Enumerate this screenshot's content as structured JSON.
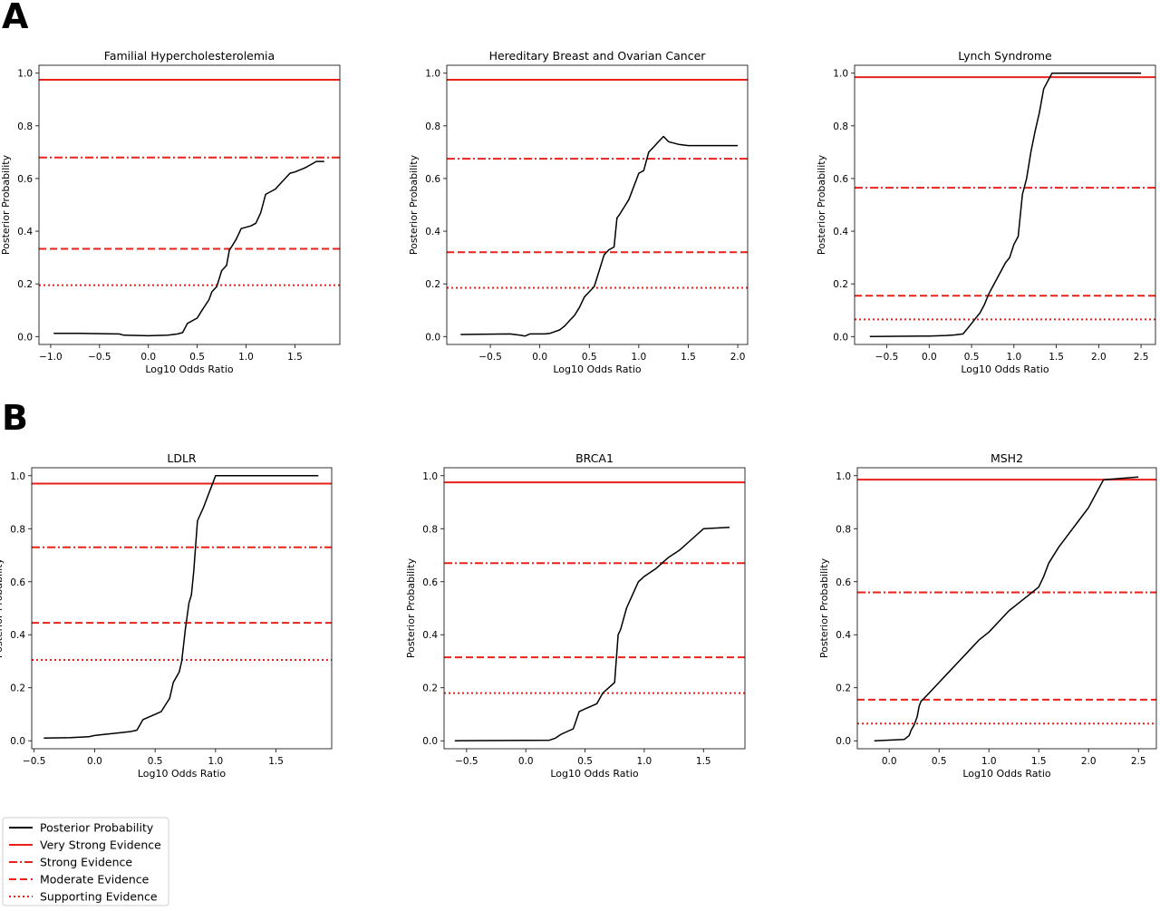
{
  "panel_labels": [
    "A",
    "B"
  ],
  "legend": {
    "entries": [
      {
        "key": "posterior",
        "label": "Posterior Probability",
        "color": "#000000",
        "style": "solid"
      },
      {
        "key": "very_strong",
        "label": "Very Strong Evidence",
        "color": "#e8221a",
        "style": "solid"
      },
      {
        "key": "strong",
        "label": "Strong Evidence",
        "color": "#e8221a",
        "style": "dashdot"
      },
      {
        "key": "moderate",
        "label": "Moderate Evidence",
        "color": "#e8221a",
        "style": "dashed"
      },
      {
        "key": "supporting",
        "label": "Supporting Evidence",
        "color": "#e8221a",
        "style": "dotted"
      }
    ]
  },
  "chart_data": [
    {
      "type": "line",
      "title": "Familial Hypercholesterolemia",
      "xlabel": "Log10 Odds Ratio",
      "ylabel": "Posterior Probability",
      "xlim": [
        -1.12,
        1.96
      ],
      "ylim": [
        -0.03,
        1.03
      ],
      "xticks": [
        -1.0,
        -0.5,
        0.0,
        0.5,
        1.0,
        1.5
      ],
      "xtick_labels": [
        "−1.0",
        "−0.5",
        "0.0",
        "0.5",
        "1.0",
        "1.5"
      ],
      "yticks": [
        0.0,
        0.2,
        0.4,
        0.6,
        0.8,
        1.0
      ],
      "ytick_labels": [
        "0.0",
        "0.2",
        "0.4",
        "0.6",
        "0.8",
        "1.0"
      ],
      "thresholds": {
        "very_strong": 0.975,
        "strong": 0.68,
        "moderate": 0.333,
        "supporting": 0.195
      },
      "series": [
        {
          "x": [
            -0.97,
            -0.7,
            -0.3,
            -0.25,
            0.0,
            0.2,
            0.3,
            0.35,
            0.4,
            0.5,
            0.55,
            0.62,
            0.65,
            0.7,
            0.75,
            0.8,
            0.83,
            0.85,
            0.9,
            0.95,
            1.0,
            1.05,
            1.1,
            1.15,
            1.2,
            1.25,
            1.3,
            1.35,
            1.45,
            1.5,
            1.6,
            1.65,
            1.72,
            1.8
          ],
          "y": [
            0.012,
            0.012,
            0.01,
            0.005,
            0.003,
            0.005,
            0.01,
            0.015,
            0.05,
            0.07,
            0.1,
            0.14,
            0.17,
            0.19,
            0.25,
            0.27,
            0.33,
            0.34,
            0.37,
            0.41,
            0.415,
            0.42,
            0.43,
            0.47,
            0.54,
            0.55,
            0.56,
            0.58,
            0.62,
            0.625,
            0.64,
            0.65,
            0.665,
            0.665
          ]
        }
      ]
    },
    {
      "type": "line",
      "title": "Hereditary Breast and Ovarian Cancer",
      "xlabel": "Log10 Odds Ratio",
      "ylabel": "Posterior Probability",
      "xlim": [
        -0.94,
        2.1
      ],
      "ylim": [
        -0.03,
        1.03
      ],
      "xticks": [
        -0.5,
        0.0,
        0.5,
        1.0,
        1.5,
        2.0
      ],
      "xtick_labels": [
        "−0.5",
        "0.0",
        "0.5",
        "1.0",
        "1.5",
        "2.0"
      ],
      "yticks": [
        0.0,
        0.2,
        0.4,
        0.6,
        0.8,
        1.0
      ],
      "ytick_labels": [
        "0.0",
        "0.2",
        "0.4",
        "0.6",
        "0.8",
        "1.0"
      ],
      "thresholds": {
        "very_strong": 0.975,
        "strong": 0.675,
        "moderate": 0.32,
        "supporting": 0.185
      },
      "series": [
        {
          "x": [
            -0.8,
            -0.3,
            -0.2,
            -0.15,
            -0.1,
            0.0,
            0.05,
            0.1,
            0.2,
            0.25,
            0.3,
            0.35,
            0.4,
            0.45,
            0.5,
            0.55,
            0.6,
            0.65,
            0.7,
            0.75,
            0.78,
            0.8,
            0.85,
            0.9,
            0.95,
            1.0,
            1.05,
            1.1,
            1.15,
            1.2,
            1.25,
            1.3,
            1.4,
            1.5,
            2.0
          ],
          "y": [
            0.008,
            0.01,
            0.005,
            0.002,
            0.01,
            0.01,
            0.01,
            0.012,
            0.025,
            0.04,
            0.06,
            0.08,
            0.11,
            0.15,
            0.17,
            0.19,
            0.25,
            0.31,
            0.33,
            0.34,
            0.45,
            0.46,
            0.49,
            0.52,
            0.57,
            0.62,
            0.63,
            0.7,
            0.72,
            0.74,
            0.76,
            0.74,
            0.73,
            0.725,
            0.725
          ]
        }
      ]
    },
    {
      "type": "line",
      "title": "Lynch Syndrome",
      "xlabel": "Log10 Odds Ratio",
      "ylabel": "Posterior Probability",
      "xlim": [
        -0.88,
        2.67
      ],
      "ylim": [
        -0.03,
        1.03
      ],
      "xticks": [
        -0.5,
        0.0,
        0.5,
        1.0,
        1.5,
        2.0,
        2.5
      ],
      "xtick_labels": [
        "−0.5",
        "0.0",
        "0.5",
        "1.0",
        "1.5",
        "2.0",
        "2.5"
      ],
      "yticks": [
        0.0,
        0.2,
        0.4,
        0.6,
        0.8,
        1.0
      ],
      "ytick_labels": [
        "0.0",
        "0.2",
        "0.4",
        "0.6",
        "0.8",
        "1.0"
      ],
      "thresholds": {
        "very_strong": 0.985,
        "strong": 0.565,
        "moderate": 0.155,
        "supporting": 0.065
      },
      "series": [
        {
          "x": [
            -0.7,
            0.0,
            0.2,
            0.3,
            0.4,
            0.45,
            0.5,
            0.55,
            0.6,
            0.65,
            0.7,
            0.75,
            0.8,
            0.85,
            0.9,
            0.95,
            1.0,
            1.05,
            1.1,
            1.15,
            1.2,
            1.25,
            1.3,
            1.35,
            1.4,
            1.45,
            1.5,
            2.5
          ],
          "y": [
            0.0,
            0.002,
            0.004,
            0.006,
            0.01,
            0.03,
            0.05,
            0.07,
            0.09,
            0.12,
            0.16,
            0.19,
            0.22,
            0.25,
            0.28,
            0.3,
            0.35,
            0.38,
            0.54,
            0.6,
            0.7,
            0.78,
            0.85,
            0.94,
            0.97,
            1.0,
            1.0,
            1.0
          ]
        }
      ]
    },
    {
      "type": "line",
      "title": "LDLR",
      "xlabel": "Log10 Odds Ratio",
      "ylabel": "Posterior Probability",
      "xlim": [
        -0.52,
        1.96
      ],
      "ylim": [
        -0.03,
        1.03
      ],
      "xticks": [
        -0.5,
        0.0,
        0.5,
        1.0,
        1.5
      ],
      "xtick_labels": [
        "−0.5",
        "0.0",
        "0.5",
        "1.0",
        "1.5"
      ],
      "yticks": [
        0.0,
        0.2,
        0.4,
        0.6,
        0.8,
        1.0
      ],
      "ytick_labels": [
        "0.0",
        "0.2",
        "0.4",
        "0.6",
        "0.8",
        "1.0"
      ],
      "thresholds": {
        "very_strong": 0.97,
        "strong": 0.73,
        "moderate": 0.445,
        "supporting": 0.305
      },
      "series": [
        {
          "x": [
            -0.42,
            -0.2,
            -0.05,
            0.0,
            0.1,
            0.2,
            0.3,
            0.35,
            0.4,
            0.5,
            0.55,
            0.62,
            0.65,
            0.7,
            0.72,
            0.75,
            0.78,
            0.8,
            0.82,
            0.85,
            0.9,
            0.95,
            1.0,
            1.05,
            1.85
          ],
          "y": [
            0.01,
            0.012,
            0.015,
            0.02,
            0.025,
            0.03,
            0.035,
            0.04,
            0.08,
            0.1,
            0.11,
            0.16,
            0.22,
            0.26,
            0.3,
            0.42,
            0.52,
            0.55,
            0.64,
            0.83,
            0.88,
            0.94,
            1.0,
            1.0,
            1.0
          ]
        }
      ]
    },
    {
      "type": "line",
      "title": "BRCA1",
      "xlabel": "Log10 Odds Ratio",
      "ylabel": "Posterior Probability",
      "xlim": [
        -0.69,
        1.85
      ],
      "ylim": [
        -0.03,
        1.03
      ],
      "xticks": [
        -0.5,
        0.0,
        0.5,
        1.0,
        1.5
      ],
      "xtick_labels": [
        "−0.5",
        "0.0",
        "0.5",
        "1.0",
        "1.5"
      ],
      "yticks": [
        0.0,
        0.2,
        0.4,
        0.6,
        0.8,
        1.0
      ],
      "ytick_labels": [
        "0.0",
        "0.2",
        "0.4",
        "0.6",
        "0.8",
        "1.0"
      ],
      "thresholds": {
        "very_strong": 0.975,
        "strong": 0.67,
        "moderate": 0.315,
        "supporting": 0.18
      },
      "series": [
        {
          "x": [
            -0.6,
            0.2,
            0.25,
            0.3,
            0.35,
            0.4,
            0.42,
            0.45,
            0.5,
            0.55,
            0.6,
            0.65,
            0.7,
            0.75,
            0.78,
            0.8,
            0.85,
            0.9,
            0.95,
            1.0,
            1.1,
            1.2,
            1.3,
            1.4,
            1.5,
            1.72
          ],
          "y": [
            0.0,
            0.002,
            0.01,
            0.025,
            0.035,
            0.045,
            0.07,
            0.11,
            0.12,
            0.13,
            0.14,
            0.18,
            0.2,
            0.22,
            0.4,
            0.42,
            0.5,
            0.55,
            0.6,
            0.62,
            0.65,
            0.69,
            0.72,
            0.76,
            0.8,
            0.805
          ]
        }
      ]
    },
    {
      "type": "line",
      "title": "MSH2",
      "xlabel": "Log10 Odds Ratio",
      "ylabel": "Posterior Probability",
      "xlim": [
        -0.32,
        2.68
      ],
      "ylim": [
        -0.03,
        1.03
      ],
      "xticks": [
        0.0,
        0.5,
        1.0,
        1.5,
        2.0,
        2.5
      ],
      "xtick_labels": [
        "0.0",
        "0.5",
        "1.0",
        "1.5",
        "2.0",
        "2.5"
      ],
      "yticks": [
        0.0,
        0.2,
        0.4,
        0.6,
        0.8,
        1.0
      ],
      "ytick_labels": [
        "0.0",
        "0.2",
        "0.4",
        "0.6",
        "0.8",
        "1.0"
      ],
      "thresholds": {
        "very_strong": 0.985,
        "strong": 0.56,
        "moderate": 0.155,
        "supporting": 0.065
      },
      "series": [
        {
          "x": [
            -0.15,
            0.15,
            0.2,
            0.22,
            0.25,
            0.28,
            0.3,
            0.32,
            0.35,
            0.4,
            0.5,
            0.6,
            0.7,
            0.8,
            0.9,
            1.0,
            1.1,
            1.2,
            1.3,
            1.4,
            1.5,
            1.55,
            1.6,
            1.7,
            1.8,
            1.9,
            2.0,
            2.1,
            2.15,
            2.5
          ],
          "y": [
            0.0,
            0.005,
            0.02,
            0.04,
            0.06,
            0.09,
            0.13,
            0.15,
            0.16,
            0.18,
            0.22,
            0.26,
            0.3,
            0.34,
            0.38,
            0.41,
            0.45,
            0.49,
            0.52,
            0.55,
            0.58,
            0.62,
            0.67,
            0.73,
            0.78,
            0.83,
            0.88,
            0.95,
            0.985,
            0.995
          ]
        }
      ]
    }
  ]
}
